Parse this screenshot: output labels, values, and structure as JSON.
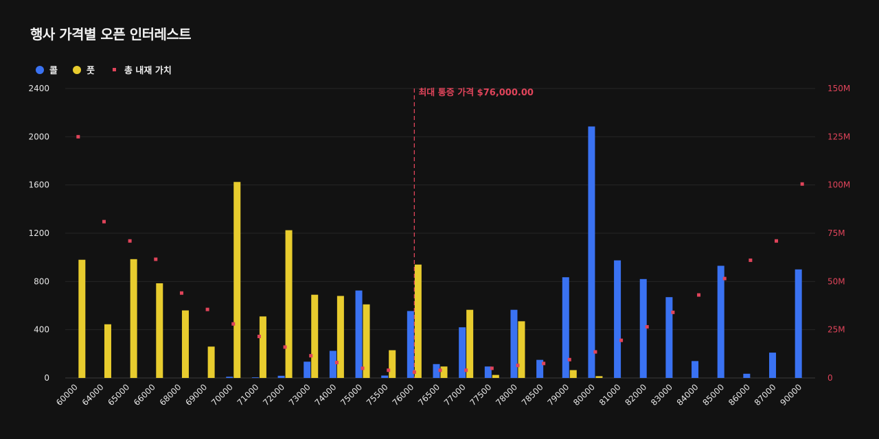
{
  "title": "행사 가격별 오픈 인터레스트",
  "legend": {
    "call_label": "콜",
    "put_label": "풋",
    "intrinsic_label": "총 내재 가치"
  },
  "colors": {
    "call": "#3a72f2",
    "put": "#e8cc2e",
    "intrinsic": "#e0445a",
    "grid": "#262626"
  },
  "chart_data": {
    "type": "bar",
    "title": "행사 가격별 오픈 인터레스트",
    "xlabel": "",
    "ylabel": "",
    "ylim": [
      0,
      2400
    ],
    "y_ticks": [
      0,
      400,
      800,
      1200,
      1600,
      2000,
      2400
    ],
    "y2lim": [
      0,
      150
    ],
    "y2_ticks": [
      "0",
      "25M",
      "50M",
      "75M",
      "100M",
      "125M",
      "150M"
    ],
    "grid": true,
    "legend_position": "top-left",
    "categories": [
      "60000",
      "64000",
      "65000",
      "66000",
      "68000",
      "69000",
      "70000",
      "71000",
      "72000",
      "73000",
      "74000",
      "75000",
      "75500",
      "76000",
      "76500",
      "77000",
      "77500",
      "78000",
      "78500",
      "79000",
      "80000",
      "81000",
      "82000",
      "83000",
      "84000",
      "85000",
      "86000",
      "87000",
      "90000"
    ],
    "series": [
      {
        "name": "콜",
        "type": "bar",
        "values": [
          0,
          0,
          0,
          0,
          0,
          0,
          10,
          5,
          18,
          135,
          225,
          725,
          20,
          555,
          115,
          420,
          95,
          565,
          150,
          835,
          2085,
          975,
          820,
          670,
          140,
          930,
          35,
          210,
          900
        ]
      },
      {
        "name": "풋",
        "type": "bar",
        "values": [
          980,
          445,
          985,
          785,
          560,
          260,
          1625,
          510,
          1225,
          690,
          680,
          610,
          230,
          940,
          95,
          565,
          25,
          470,
          0,
          65,
          15,
          0,
          0,
          0,
          0,
          0,
          0,
          0,
          0
        ]
      },
      {
        "name": "총 내재 가치",
        "type": "scatter",
        "axis": "right",
        "unit": "M",
        "values": [
          125,
          81,
          71,
          61.5,
          44,
          35.5,
          28,
          21.5,
          16,
          11.5,
          8,
          5,
          4,
          3,
          4,
          4,
          5,
          6.5,
          7.5,
          9.5,
          13.5,
          19.5,
          26.5,
          34,
          43,
          51.5,
          61,
          71,
          100.5
        ]
      }
    ],
    "annotations": [
      {
        "type": "vline",
        "x": "76000",
        "text": "최대 통증 가격 $76,000.00"
      }
    ]
  }
}
